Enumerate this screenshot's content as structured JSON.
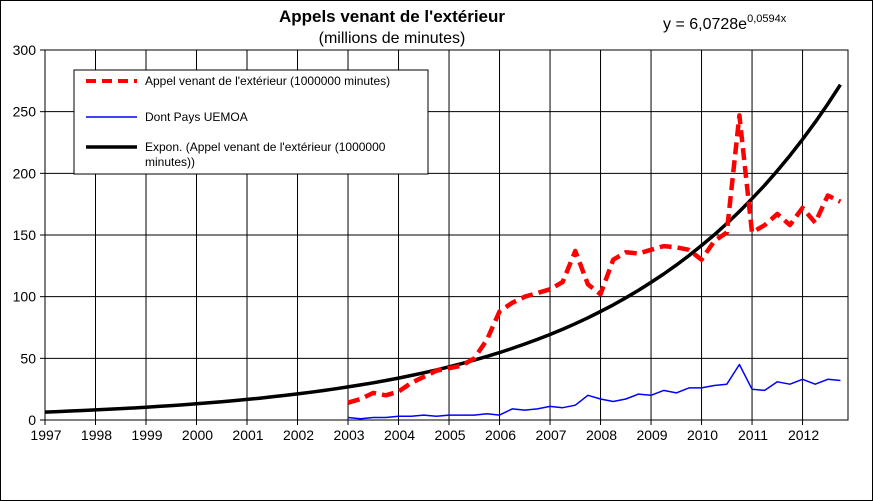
{
  "chart_data": {
    "type": "line",
    "title": "Appels venant de l'extérieur",
    "subtitle": "(millions de minutes)",
    "equation": {
      "base": "y = 6,0728e",
      "exponent": "0,0594x"
    },
    "xlabel": "",
    "ylabel": "",
    "xlim": [
      1997,
      2012.9
    ],
    "ylim": [
      0,
      300
    ],
    "y_ticks": [
      0,
      50,
      100,
      150,
      200,
      250,
      300
    ],
    "x_ticks": [
      "1997",
      "1998",
      "1999",
      "2000",
      "2001",
      "2002",
      "2003",
      "2004",
      "2005",
      "2006",
      "2007",
      "2008",
      "2009",
      "2010",
      "2011",
      "2012"
    ],
    "grid": true,
    "legend_position": "top-left",
    "series": [
      {
        "name": "Appel venant de l'extérieur (1000000 minutes)",
        "color": "#ff0000",
        "style": "dashed",
        "x": [
          2003.0,
          2003.25,
          2003.5,
          2003.75,
          2004.0,
          2004.25,
          2004.5,
          2004.75,
          2005.0,
          2005.25,
          2005.5,
          2005.75,
          2006.0,
          2006.25,
          2006.5,
          2006.75,
          2007.0,
          2007.25,
          2007.5,
          2007.75,
          2008.0,
          2008.25,
          2008.5,
          2008.75,
          2009.0,
          2009.25,
          2009.5,
          2009.75,
          2010.0,
          2010.25,
          2010.5,
          2010.75,
          2011.0,
          2011.25,
          2011.5,
          2011.75,
          2012.0,
          2012.25,
          2012.5,
          2012.75
        ],
        "values": [
          14,
          17,
          22,
          20,
          23,
          30,
          35,
          40,
          42,
          44,
          50,
          65,
          88,
          95,
          100,
          103,
          106,
          112,
          137,
          110,
          102,
          130,
          136,
          135,
          138,
          141,
          140,
          138,
          130,
          145,
          152,
          247,
          152,
          158,
          167,
          158,
          172,
          160,
          182,
          177
        ]
      },
      {
        "name": "Dont Pays UEMOA",
        "color": "#0000ff",
        "style": "solid",
        "x": [
          2003.0,
          2003.25,
          2003.5,
          2003.75,
          2004.0,
          2004.25,
          2004.5,
          2004.75,
          2005.0,
          2005.25,
          2005.5,
          2005.75,
          2006.0,
          2006.25,
          2006.5,
          2006.75,
          2007.0,
          2007.25,
          2007.5,
          2007.75,
          2008.0,
          2008.25,
          2008.5,
          2008.75,
          2009.0,
          2009.25,
          2009.5,
          2009.75,
          2010.0,
          2010.25,
          2010.5,
          2010.75,
          2011.0,
          2011.25,
          2011.5,
          2011.75,
          2012.0,
          2012.25,
          2012.5,
          2012.75
        ],
        "values": [
          2,
          1,
          2,
          2,
          3,
          3,
          4,
          3,
          4,
          4,
          4,
          5,
          4,
          9,
          8,
          9,
          11,
          10,
          12,
          20,
          17,
          15,
          17,
          21,
          20,
          24,
          22,
          26,
          26,
          28,
          29,
          45,
          25,
          24,
          31,
          29,
          33,
          29,
          33,
          32
        ]
      },
      {
        "name": "Expon. (Appel venant de l'extérieur (1000000 minutes))",
        "color": "#000000",
        "style": "solid",
        "trend": "exponential",
        "coef_a": 6.0728,
        "coef_b": 0.0594,
        "period_start": 1997.0,
        "period_step": 0.25,
        "x_end": 2012.75
      }
    ]
  }
}
